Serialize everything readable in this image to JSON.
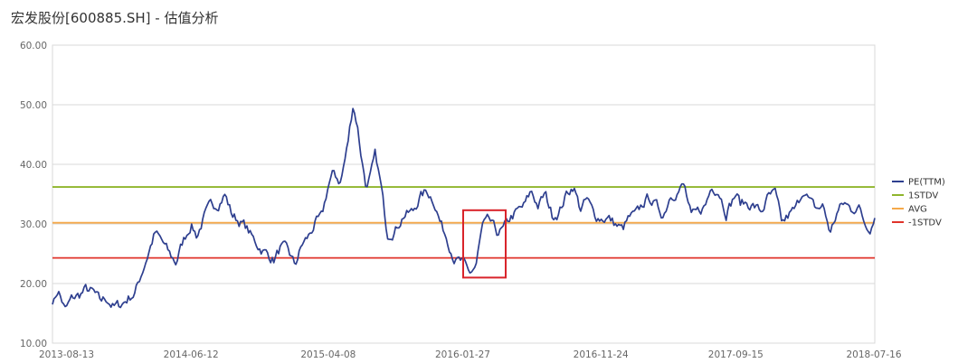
{
  "title": "宏发股份[600885.SH] - 估值分析",
  "colors": {
    "pe": "#2e3f8f",
    "stdv_plus": "#8fb52c",
    "avg": "#f5a94a",
    "stdv_minus": "#e0332a",
    "highlight_box": "#d9232a",
    "grid": "#d9d9d9"
  },
  "chart_data": {
    "type": "line",
    "title": "",
    "xlabel": "",
    "ylabel": "",
    "ylim": [
      10,
      60
    ],
    "yticks": [
      "10.00",
      "20.00",
      "30.00",
      "40.00",
      "50.00",
      "60.00"
    ],
    "yticks_values": [
      10,
      20,
      30,
      40,
      50,
      60
    ],
    "xlim": [
      "2013-08-13",
      "2018-07-16"
    ],
    "xticks": [
      "2013-08-13",
      "2014-06-12",
      "2015-04-08",
      "2016-01-27",
      "2016-11-24",
      "2017-09-15",
      "2018-07-16"
    ],
    "grid": true,
    "legend_position": "right",
    "legend": [
      "PE(TTM)",
      "1STDV",
      "AVG",
      "-1STDV"
    ],
    "series": [
      {
        "name": "PE(TTM)",
        "x": [
          "2013-08-13",
          "2013-08-25",
          "2013-09-10",
          "2013-09-25",
          "2013-10-10",
          "2013-10-25",
          "2013-11-10",
          "2013-11-25",
          "2013-12-10",
          "2013-12-25",
          "2014-01-10",
          "2014-01-25",
          "2014-02-10",
          "2014-02-25",
          "2014-03-10",
          "2014-03-25",
          "2014-04-10",
          "2014-04-25",
          "2014-05-10",
          "2014-05-25",
          "2014-06-12",
          "2014-06-25",
          "2014-07-10",
          "2014-07-25",
          "2014-08-10",
          "2014-08-25",
          "2014-09-10",
          "2014-09-25",
          "2014-10-10",
          "2014-10-25",
          "2014-11-10",
          "2014-11-25",
          "2014-12-10",
          "2014-12-25",
          "2015-01-10",
          "2015-01-25",
          "2015-02-10",
          "2015-02-25",
          "2015-03-10",
          "2015-03-25",
          "2015-04-08",
          "2015-04-20",
          "2015-05-05",
          "2015-05-20",
          "2015-06-01",
          "2015-06-10",
          "2015-06-20",
          "2015-07-01",
          "2015-07-10",
          "2015-07-20",
          "2015-08-01",
          "2015-08-15",
          "2015-09-01",
          "2015-09-20",
          "2015-10-10",
          "2015-10-25",
          "2015-11-10",
          "2015-11-25",
          "2015-12-10",
          "2015-12-25",
          "2016-01-10",
          "2016-01-27",
          "2016-02-10",
          "2016-02-25",
          "2016-03-10",
          "2016-03-25",
          "2016-04-10",
          "2016-04-25",
          "2016-05-10",
          "2016-05-25",
          "2016-06-10",
          "2016-06-25",
          "2016-07-10",
          "2016-07-25",
          "2016-08-10",
          "2016-08-25",
          "2016-09-10",
          "2016-09-25",
          "2016-10-10",
          "2016-10-25",
          "2016-11-10",
          "2016-11-24",
          "2016-12-10",
          "2016-12-25",
          "2017-01-10",
          "2017-01-25",
          "2017-02-10",
          "2017-02-25",
          "2017-03-10",
          "2017-03-25",
          "2017-04-10",
          "2017-04-25",
          "2017-05-10",
          "2017-05-25",
          "2017-06-10",
          "2017-06-25",
          "2017-07-10",
          "2017-07-25",
          "2017-08-10",
          "2017-08-25",
          "2017-09-15",
          "2017-09-25",
          "2017-10-10",
          "2017-10-25",
          "2017-11-10",
          "2017-11-25",
          "2017-12-10",
          "2017-12-25",
          "2018-01-10",
          "2018-01-25",
          "2018-02-10",
          "2018-02-25",
          "2018-03-10",
          "2018-03-25",
          "2018-04-10",
          "2018-04-25",
          "2018-05-10",
          "2018-05-25",
          "2018-06-10",
          "2018-06-25",
          "2018-07-05",
          "2018-07-16"
        ],
        "values": [
          16.5,
          19.0,
          15.5,
          17.5,
          18.0,
          19.0,
          18.5,
          17.0,
          17.5,
          16.0,
          16.5,
          17.5,
          18.5,
          22.0,
          25.0,
          28.5,
          27.0,
          25.0,
          23.5,
          27.0,
          30.0,
          28.0,
          31.0,
          33.0,
          33.5,
          35.0,
          31.5,
          30.5,
          29.5,
          27.5,
          26.0,
          25.0,
          24.0,
          26.0,
          25.5,
          23.0,
          26.5,
          28.0,
          30.0,
          31.0,
          36.5,
          38.5,
          37.0,
          43.0,
          50.0,
          47.0,
          41.0,
          36.0,
          38.0,
          41.5,
          36.5,
          28.5,
          29.0,
          31.5,
          32.0,
          34.5,
          35.5,
          34.0,
          30.0,
          27.5,
          24.0,
          23.5,
          21.5,
          23.0,
          29.5,
          30.5,
          28.5,
          29.0,
          31.0,
          32.0,
          33.0,
          35.5,
          33.0,
          35.0,
          31.5,
          32.0,
          35.0,
          36.5,
          32.5,
          34.0,
          31.5,
          31.0,
          31.0,
          30.0,
          29.0,
          31.0,
          31.5,
          33.5,
          34.5,
          33.0,
          31.5,
          35.0,
          35.5,
          36.5,
          31.0,
          32.0,
          33.0,
          36.5,
          35.5,
          32.0,
          35.0,
          33.5,
          33.5,
          33.0,
          32.0,
          34.5,
          35.0,
          30.0,
          31.5,
          32.5,
          36.0,
          33.5,
          32.5,
          33.0,
          28.5,
          32.0,
          33.5,
          32.5,
          33.0,
          30.0,
          29.5,
          31.0
        ]
      },
      {
        "name": "1STDV",
        "value": 36.2
      },
      {
        "name": "AVG",
        "value": 30.2
      },
      {
        "name": "-1STDV",
        "value": 24.3
      }
    ],
    "annotations": [
      {
        "type": "rectangle",
        "x_range": [
          "2016-01-28",
          "2016-04-30"
        ],
        "y_range": [
          21.0,
          32.3
        ]
      }
    ]
  }
}
